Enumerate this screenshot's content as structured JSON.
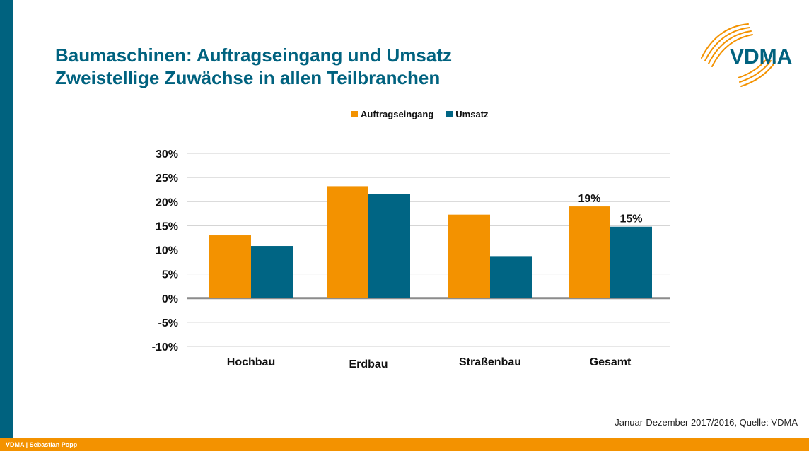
{
  "title": {
    "line1": "Baumaschinen: Auftragseingang und Umsatz",
    "line2": "Zweistellige Zuwächse in allen Teilbranchen"
  },
  "logo": {
    "text": "VDMA"
  },
  "footer": {
    "text": "VDMA | Sebastian Popp"
  },
  "source": "Januar-Dezember 2017/2016, Quelle: VDMA",
  "colors": {
    "accent": "#00627f",
    "orange": "#f39200",
    "blue": "#006584"
  },
  "chart_data": {
    "type": "bar",
    "categories": [
      "Hochbau",
      "Erdbau",
      "Straßenbau",
      "Gesamt"
    ],
    "series": [
      {
        "name": "Auftragseingang",
        "color": "#f39200",
        "values": [
          13,
          23.2,
          17.3,
          19
        ]
      },
      {
        "name": "Umsatz",
        "color": "#006584",
        "values": [
          10.8,
          21.6,
          8.7,
          14.8
        ]
      }
    ],
    "data_labels": [
      {
        "category": "Gesamt",
        "series": "Auftragseingang",
        "text": "19%"
      },
      {
        "category": "Gesamt",
        "series": "Umsatz",
        "text": "15%"
      }
    ],
    "yticks": [
      "30%",
      "25%",
      "20%",
      "15%",
      "10%",
      "5%",
      "0%",
      "-5%",
      "-10%"
    ],
    "ylim": [
      -10,
      30
    ],
    "grid": true,
    "legend": "top"
  }
}
